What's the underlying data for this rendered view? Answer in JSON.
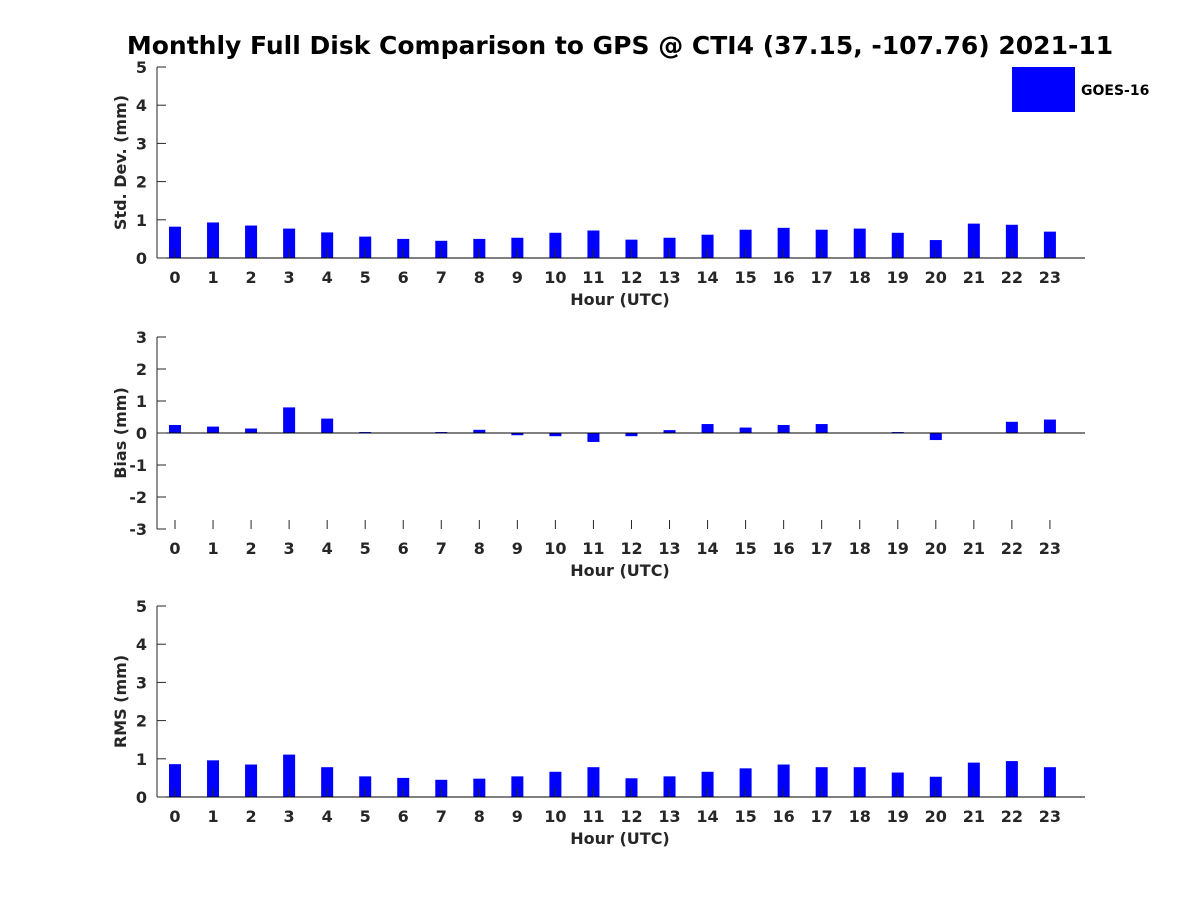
{
  "chart_data": {
    "type": "bar",
    "title": "Monthly Full Disk Comparison to GPS @ CTI4 (37.15, -107.76) 2021-11",
    "legend": {
      "label": "GOES-16",
      "placement": "top-right"
    },
    "bar_color": "#0000ff",
    "axis_color": "#262626",
    "categories": [
      "0",
      "1",
      "2",
      "3",
      "4",
      "5",
      "6",
      "7",
      "8",
      "9",
      "10",
      "11",
      "12",
      "13",
      "14",
      "15",
      "16",
      "17",
      "18",
      "19",
      "20",
      "21",
      "22",
      "23"
    ],
    "panels": [
      {
        "id": "std",
        "xlabel": "Hour (UTC)",
        "ylabel": "Std. Dev. (mm)",
        "ylim": [
          0,
          5
        ],
        "yticks": [
          0,
          1,
          2,
          3,
          4,
          5
        ],
        "values": [
          0.82,
          0.93,
          0.85,
          0.77,
          0.67,
          0.56,
          0.5,
          0.45,
          0.5,
          0.53,
          0.66,
          0.72,
          0.48,
          0.53,
          0.61,
          0.74,
          0.79,
          0.74,
          0.77,
          0.66,
          0.47,
          0.9,
          0.87,
          0.69
        ]
      },
      {
        "id": "bias",
        "xlabel": "Hour (UTC)",
        "ylabel": "Bias (mm)",
        "ylim": [
          -3,
          3
        ],
        "yticks": [
          -3,
          -2,
          -1,
          0,
          1,
          2,
          3
        ],
        "values": [
          0.25,
          0.2,
          0.14,
          0.8,
          0.45,
          0.03,
          0.0,
          0.03,
          0.1,
          -0.07,
          -0.1,
          -0.28,
          -0.1,
          0.09,
          0.28,
          0.17,
          0.25,
          0.28,
          0.0,
          0.03,
          -0.22,
          0.0,
          0.35,
          0.42
        ]
      },
      {
        "id": "rms",
        "xlabel": "Hour (UTC)",
        "ylabel": "RMS (mm)",
        "ylim": [
          0,
          5
        ],
        "yticks": [
          0,
          1,
          2,
          3,
          4,
          5
        ],
        "values": [
          0.86,
          0.96,
          0.85,
          1.11,
          0.78,
          0.54,
          0.5,
          0.45,
          0.48,
          0.54,
          0.66,
          0.78,
          0.49,
          0.54,
          0.66,
          0.75,
          0.85,
          0.78,
          0.78,
          0.64,
          0.53,
          0.9,
          0.94,
          0.78
        ]
      }
    ]
  }
}
